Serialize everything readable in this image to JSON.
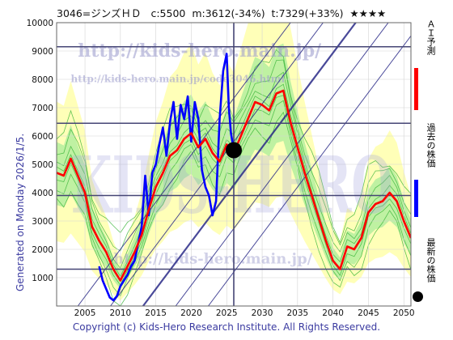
{
  "header": {
    "code_name": "3046=ジンズＨＤ",
    "current": "c:5500",
    "min": "m:3612(-34%)",
    "target": "t:7329(+33%)",
    "stars": "★★★★"
  },
  "generated": "Generated on Monday 2026/1/5.",
  "copyright": "Copyright (c) Kids-Hero Research Institute. All Rights Reserved.",
  "watermarks": {
    "url1": "http://kids-hero.main.jp/",
    "url2": "http://kids-hero.main.jp/code3046.html",
    "logo": "KIDS-HERO",
    "url3": "http://kids-hero.main.jp/"
  },
  "legend": [
    {
      "label": "ＡＩ予測",
      "color": "#ff0000"
    },
    {
      "label": "過去の株価",
      "color": "#0000ff"
    },
    {
      "label": "最新の株価",
      "color": "#000000"
    }
  ],
  "chart_data": {
    "type": "line",
    "xlim": [
      2001,
      2051
    ],
    "ylim": [
      0,
      10000
    ],
    "xticks": [
      2005,
      2010,
      2015,
      2020,
      2025,
      2030,
      2035,
      2040,
      2045,
      2050
    ],
    "yticks": [
      1000,
      2000,
      3000,
      4000,
      5000,
      6000,
      7000,
      8000,
      9000,
      10000
    ],
    "grid": true,
    "hlines": [
      9150,
      6450,
      3900,
      1300
    ],
    "vline_x": 2026.0,
    "latest_point": {
      "x": 2026.0,
      "y": 5500
    },
    "series": [
      {
        "name": "過去の株価",
        "color": "#0000ff",
        "points": [
          [
            2007.0,
            1400
          ],
          [
            2007.5,
            900
          ],
          [
            2008.0,
            600
          ],
          [
            2008.5,
            300
          ],
          [
            2009.0,
            200
          ],
          [
            2009.5,
            350
          ],
          [
            2010.0,
            700
          ],
          [
            2010.5,
            900
          ],
          [
            2011.0,
            1100
          ],
          [
            2011.5,
            1400
          ],
          [
            2012.0,
            1600
          ],
          [
            2012.5,
            2200
          ],
          [
            2013.0,
            2800
          ],
          [
            2013.5,
            4600
          ],
          [
            2014.0,
            3200
          ],
          [
            2014.5,
            4700
          ],
          [
            2015.0,
            5000
          ],
          [
            2015.5,
            5700
          ],
          [
            2016.0,
            6300
          ],
          [
            2016.5,
            5300
          ],
          [
            2017.0,
            6500
          ],
          [
            2017.5,
            7200
          ],
          [
            2018.0,
            5900
          ],
          [
            2018.5,
            7100
          ],
          [
            2019.0,
            6600
          ],
          [
            2019.5,
            7400
          ],
          [
            2020.0,
            5800
          ],
          [
            2020.5,
            7200
          ],
          [
            2021.0,
            6600
          ],
          [
            2021.5,
            4800
          ],
          [
            2022.0,
            4200
          ],
          [
            2022.5,
            3900
          ],
          [
            2023.0,
            3200
          ],
          [
            2023.5,
            3700
          ],
          [
            2024.0,
            6600
          ],
          [
            2024.5,
            8300
          ],
          [
            2025.0,
            8900
          ],
          [
            2025.3,
            7000
          ],
          [
            2025.6,
            6100
          ],
          [
            2026.0,
            5500
          ]
        ]
      },
      {
        "name": "ＡＩ予測",
        "color": "#ff0000",
        "points": [
          [
            2001.0,
            4700
          ],
          [
            2002.0,
            4600
          ],
          [
            2003.0,
            5200
          ],
          [
            2004.0,
            4600
          ],
          [
            2005.0,
            4000
          ],
          [
            2006.0,
            2800
          ],
          [
            2007.0,
            2300
          ],
          [
            2008.0,
            1900
          ],
          [
            2009.0,
            1300
          ],
          [
            2010.0,
            900
          ],
          [
            2011.0,
            1400
          ],
          [
            2012.0,
            1900
          ],
          [
            2013.0,
            2500
          ],
          [
            2014.0,
            3400
          ],
          [
            2015.0,
            4200
          ],
          [
            2016.0,
            4700
          ],
          [
            2017.0,
            5300
          ],
          [
            2018.0,
            5500
          ],
          [
            2019.0,
            5900
          ],
          [
            2020.0,
            6100
          ],
          [
            2021.0,
            5600
          ],
          [
            2022.0,
            5900
          ],
          [
            2023.0,
            5400
          ],
          [
            2024.0,
            5100
          ],
          [
            2025.0,
            5700
          ],
          [
            2026.0,
            5400
          ],
          [
            2027.0,
            6000
          ],
          [
            2028.0,
            6600
          ],
          [
            2029.0,
            7200
          ],
          [
            2030.0,
            7100
          ],
          [
            2031.0,
            6900
          ],
          [
            2032.0,
            7500
          ],
          [
            2033.0,
            7600
          ],
          [
            2034.0,
            6500
          ],
          [
            2035.0,
            5600
          ],
          [
            2036.0,
            4700
          ],
          [
            2037.0,
            3900
          ],
          [
            2038.0,
            3100
          ],
          [
            2039.0,
            2300
          ],
          [
            2040.0,
            1600
          ],
          [
            2041.0,
            1300
          ],
          [
            2042.0,
            2100
          ],
          [
            2043.0,
            2000
          ],
          [
            2044.0,
            2400
          ],
          [
            2045.0,
            3300
          ],
          [
            2046.0,
            3600
          ],
          [
            2047.0,
            3700
          ],
          [
            2048.0,
            4000
          ],
          [
            2049.0,
            3700
          ],
          [
            2050.0,
            3000
          ],
          [
            2051.0,
            2400
          ]
        ]
      }
    ]
  }
}
